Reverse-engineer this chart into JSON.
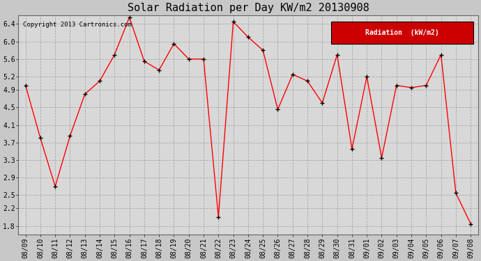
{
  "title": "Solar Radiation per Day KW/m2 20130908",
  "copyright_text": "Copyright 2013 Cartronics.com",
  "legend_label": "Radiation  (kW/m2)",
  "labels": [
    "08/09",
    "08/10",
    "08/11",
    "08/12",
    "08/13",
    "08/14",
    "08/15",
    "08/16",
    "08/17",
    "08/18",
    "08/19",
    "08/20",
    "08/21",
    "08/22",
    "08/23",
    "08/24",
    "08/25",
    "08/26",
    "08/27",
    "08/28",
    "08/29",
    "08/30",
    "08/31",
    "09/01",
    "09/02",
    "09/03",
    "09/04",
    "09/05",
    "09/06",
    "09/07",
    "09/08"
  ],
  "values": [
    5.0,
    3.8,
    2.7,
    3.85,
    4.8,
    5.1,
    5.7,
    6.55,
    5.55,
    5.35,
    5.95,
    5.6,
    5.6,
    2.0,
    6.45,
    6.1,
    5.8,
    4.45,
    5.25,
    5.1,
    4.6,
    5.7,
    3.55,
    5.2,
    3.35,
    5.0,
    4.95,
    5.0,
    5.7,
    2.55,
    1.85
  ],
  "yticks": [
    1.8,
    2.2,
    2.5,
    2.9,
    3.3,
    3.7,
    4.1,
    4.5,
    4.9,
    5.2,
    5.6,
    6.0,
    6.4
  ],
  "ylim": [
    1.6,
    6.6
  ],
  "line_color": "red",
  "marker_color": "black",
  "fig_bg_color": "#c8c8c8",
  "plot_bg_color": "#d8d8d8",
  "grid_color": "#aaaaaa",
  "title_fontsize": 11,
  "tick_fontsize": 7,
  "legend_bg": "#cc0000",
  "legend_text_color": "white"
}
